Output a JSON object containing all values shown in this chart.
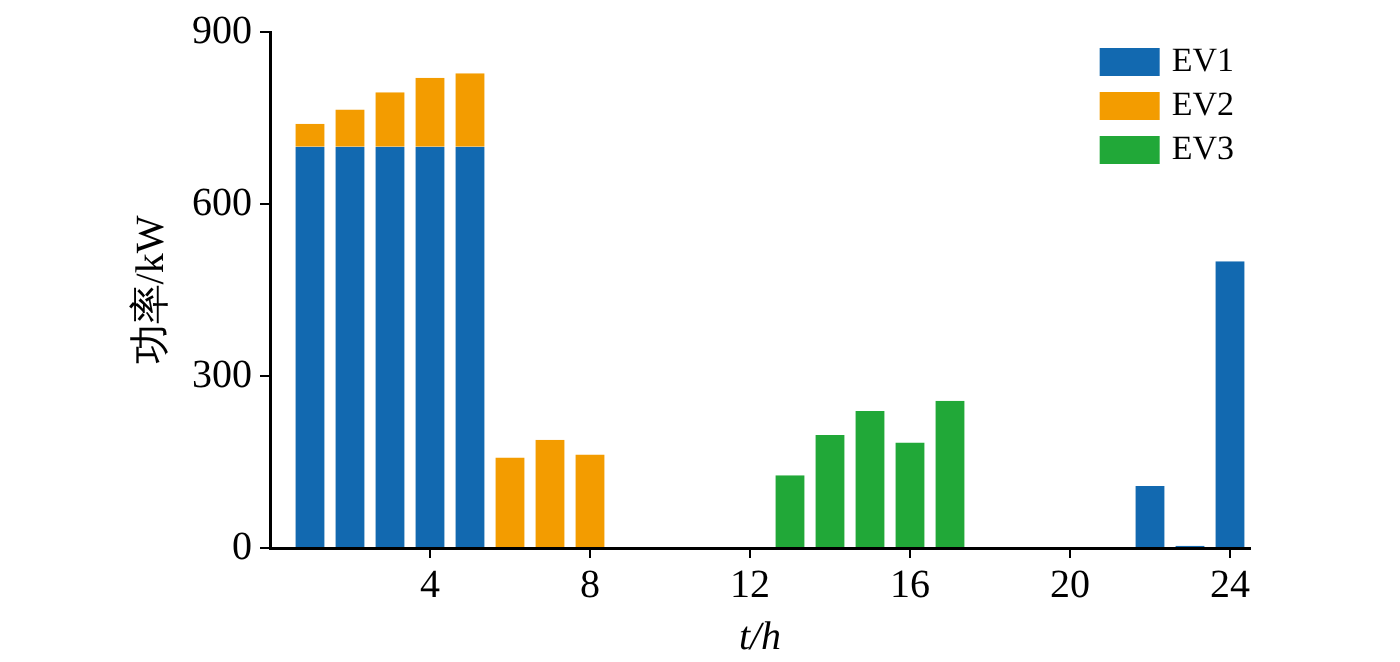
{
  "chart_data": {
    "type": "bar",
    "stacked": true,
    "xlabel": "t/h",
    "ylabel": "功率/kW",
    "x": [
      1,
      2,
      3,
      4,
      5,
      6,
      7,
      8,
      9,
      10,
      11,
      12,
      13,
      14,
      15,
      16,
      17,
      18,
      19,
      20,
      21,
      22,
      23,
      24
    ],
    "series": [
      {
        "name": "EV1",
        "color": "#1269b0",
        "values": [
          700,
          700,
          700,
          700,
          700,
          null,
          null,
          null,
          null,
          null,
          null,
          null,
          null,
          null,
          null,
          null,
          null,
          null,
          null,
          null,
          null,
          108,
          4,
          500
        ]
      },
      {
        "name": "EV2",
        "color": "#f39c00",
        "values": [
          40,
          65,
          95,
          120,
          128,
          158,
          189,
          163,
          null,
          null,
          null,
          null,
          null,
          null,
          null,
          null,
          null,
          null,
          null,
          null,
          null,
          null,
          null,
          null
        ]
      },
      {
        "name": "EV3",
        "color": "#21a838",
        "values": [
          null,
          null,
          null,
          null,
          null,
          null,
          null,
          null,
          null,
          null,
          null,
          null,
          127,
          197,
          239,
          184,
          257,
          null,
          null,
          null,
          null,
          null,
          null,
          null
        ]
      }
    ],
    "xlim": [
      0,
      24.5
    ],
    "xticks": [
      4,
      8,
      12,
      16,
      20,
      24
    ],
    "ylim": [
      0,
      900
    ],
    "yticks": [
      0,
      300,
      600,
      900
    ],
    "grid": false,
    "legend": "top right"
  }
}
